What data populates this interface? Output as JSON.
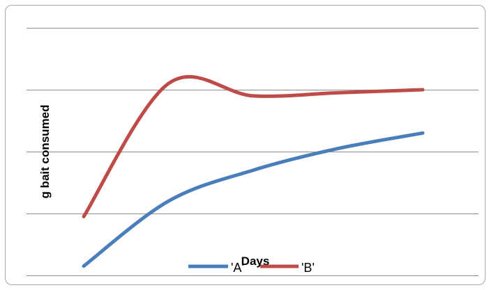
{
  "chart_data": {
    "type": "line",
    "title": "",
    "xlabel": "Days",
    "ylabel": "g bait consumed",
    "x": [
      1,
      2,
      3,
      4,
      5
    ],
    "ylim": [
      0,
      4
    ],
    "grid": true,
    "legend_position": "bottom",
    "series": [
      {
        "name": "'A'",
        "color": "#4a7ebb",
        "values": [
          0.15,
          1.2,
          1.7,
          2.05,
          2.3
        ]
      },
      {
        "name": "'B'",
        "color": "#be4b48",
        "values": [
          0.95,
          3.1,
          2.9,
          2.95,
          3.0
        ]
      }
    ]
  }
}
